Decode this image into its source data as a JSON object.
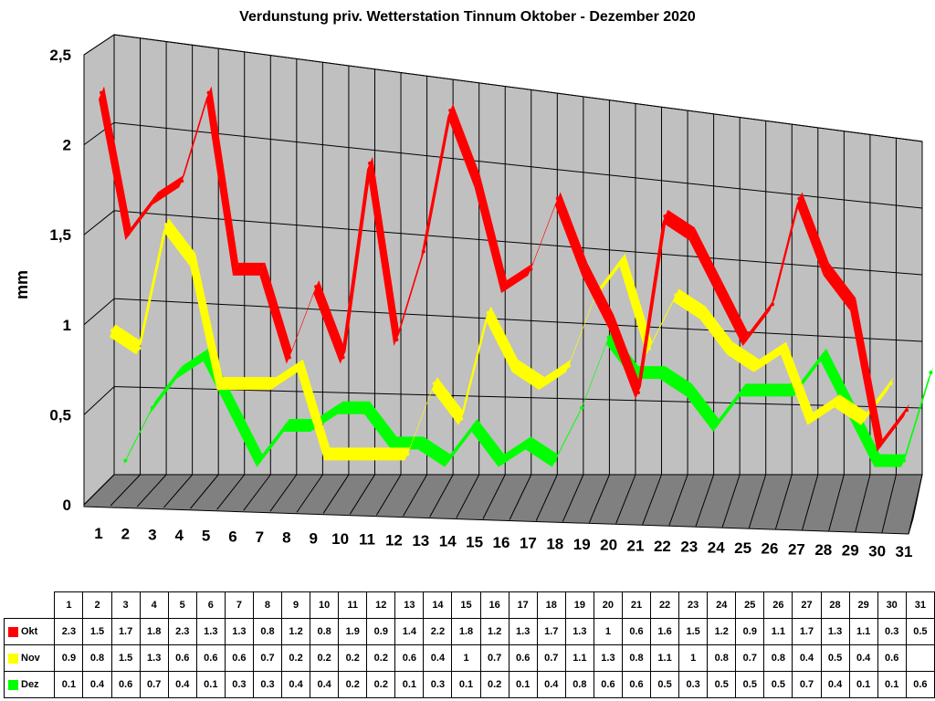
{
  "chart_data": {
    "type": "line",
    "title": "Verdunstung priv. Wetterstation Tinnum Oktober - Dezember 2020",
    "ylabel": "mm",
    "xlabel": "",
    "ylim": [
      0,
      2.5
    ],
    "yticks": [
      "0",
      "0,5",
      "1",
      "1,5",
      "2",
      "2,5"
    ],
    "categories": [
      "1",
      "2",
      "3",
      "4",
      "5",
      "6",
      "7",
      "8",
      "9",
      "10",
      "11",
      "12",
      "13",
      "14",
      "15",
      "16",
      "17",
      "18",
      "19",
      "20",
      "21",
      "22",
      "23",
      "24",
      "25",
      "26",
      "27",
      "28",
      "29",
      "30",
      "31"
    ],
    "series": [
      {
        "name": "Okt",
        "color": "#ff0000",
        "values": [
          2.3,
          1.5,
          1.7,
          1.8,
          2.3,
          1.3,
          1.3,
          0.8,
          1.2,
          0.8,
          1.9,
          0.9,
          1.4,
          2.2,
          1.8,
          1.2,
          1.3,
          1.7,
          1.3,
          1,
          0.6,
          1.6,
          1.5,
          1.2,
          0.9,
          1.1,
          1.7,
          1.3,
          1.1,
          0.3,
          0.5
        ],
        "labels": [
          "2.3",
          "1.5",
          "1.7",
          "1.8",
          "2.3",
          "1.3",
          "1.3",
          "0.8",
          "1.2",
          "0.8",
          "1.9",
          "0.9",
          "1.4",
          "2.2",
          "1.8",
          "1.2",
          "1.3",
          "1.7",
          "1.3",
          "1",
          "0.6",
          "1.6",
          "1.5",
          "1.2",
          "0.9",
          "1.1",
          "1.7",
          "1.3",
          "1.1",
          "0.3",
          "0.5"
        ]
      },
      {
        "name": "Nov",
        "color": "#ffff00",
        "values": [
          0.9,
          0.8,
          1.5,
          1.3,
          0.6,
          0.6,
          0.6,
          0.7,
          0.2,
          0.2,
          0.2,
          0.2,
          0.6,
          0.4,
          1,
          0.7,
          0.6,
          0.7,
          1.1,
          1.3,
          0.8,
          1.1,
          1,
          0.8,
          0.7,
          0.8,
          0.4,
          0.5,
          0.4,
          0.6,
          null
        ],
        "labels": [
          "0.9",
          "0.8",
          "1.5",
          "1.3",
          "0.6",
          "0.6",
          "0.6",
          "0.7",
          "0.2",
          "0.2",
          "0.2",
          "0.2",
          "0.6",
          "0.4",
          "1",
          "0.7",
          "0.6",
          "0.7",
          "1.1",
          "1.3",
          "0.8",
          "1.1",
          "1",
          "0.8",
          "0.7",
          "0.8",
          "0.4",
          "0.5",
          "0.4",
          "0.6",
          ""
        ]
      },
      {
        "name": "Dez",
        "color": "#00ff00",
        "values": [
          0.1,
          0.4,
          0.6,
          0.7,
          0.4,
          0.1,
          0.3,
          0.3,
          0.4,
          0.4,
          0.2,
          0.2,
          0.1,
          0.3,
          0.1,
          0.2,
          0.1,
          0.4,
          0.8,
          0.6,
          0.6,
          0.5,
          0.3,
          0.5,
          0.5,
          0.5,
          0.7,
          0.4,
          0.1,
          0.1,
          0.6
        ],
        "labels": [
          "0.1",
          "0.4",
          "0.6",
          "0.7",
          "0.4",
          "0.1",
          "0.3",
          "0.3",
          "0.4",
          "0.4",
          "0.2",
          "0.2",
          "0.1",
          "0.3",
          "0.1",
          "0.2",
          "0.1",
          "0.4",
          "0.8",
          "0.6",
          "0.6",
          "0.5",
          "0.3",
          "0.5",
          "0.5",
          "0.5",
          "0.7",
          "0.4",
          "0.1",
          "0.1",
          "0.6"
        ]
      }
    ],
    "grid": true,
    "legend": "table-below",
    "wall_color": "#c0c0c0",
    "floor_color": "#808080"
  }
}
